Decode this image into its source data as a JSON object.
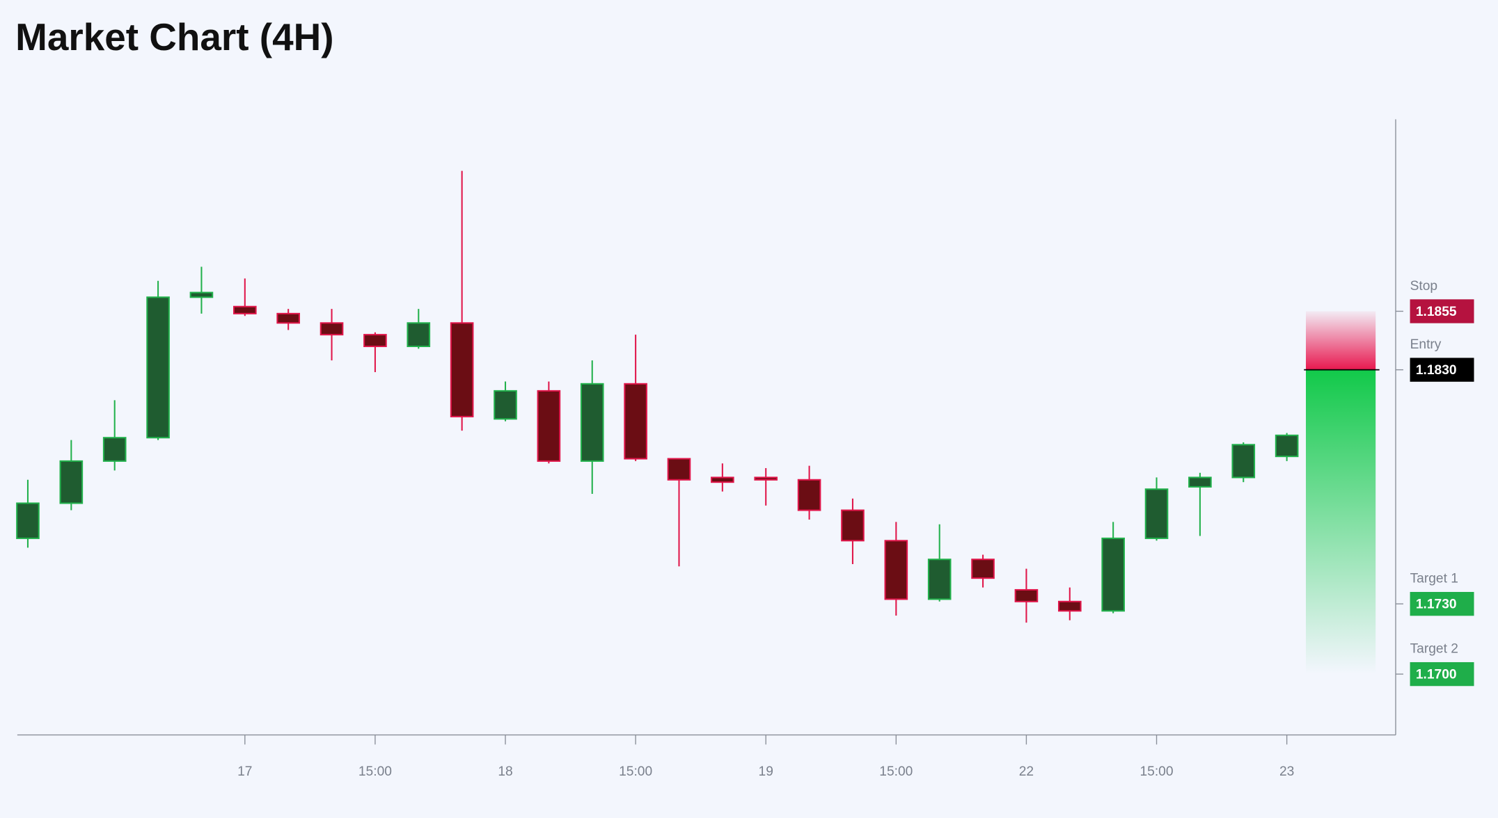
{
  "chart_data": {
    "type": "candlestick",
    "title": "Market Chart (4H)",
    "categories": [
      null,
      null,
      null,
      null,
      null,
      "17",
      null,
      null,
      "15:00",
      null,
      null,
      "18",
      null,
      null,
      "15:00",
      null,
      null,
      "19",
      null,
      null,
      "15:00",
      null,
      null,
      "22",
      null,
      null,
      "15:00",
      null,
      null,
      "23"
    ],
    "open": [
      1.1758,
      1.1773,
      1.1791,
      1.1801,
      1.1861,
      1.1857,
      1.1854,
      1.185,
      1.1845,
      1.184,
      1.185,
      1.1809,
      1.1821,
      1.1791,
      1.1824,
      1.1792,
      1.1784,
      1.1784,
      1.1783,
      1.177,
      1.1757,
      1.1732,
      1.1749,
      1.1736,
      1.1731,
      1.1727,
      1.1758,
      1.178,
      1.1784,
      1.1793
    ],
    "high": [
      1.1783,
      1.18,
      1.1817,
      1.1868,
      1.1874,
      1.1869,
      1.1856,
      1.1856,
      1.1846,
      1.1856,
      1.1915,
      1.1825,
      1.1825,
      1.1834,
      1.1845,
      1.1792,
      1.179,
      1.1788,
      1.1789,
      1.1775,
      1.1765,
      1.1764,
      1.1751,
      1.1745,
      1.1737,
      1.1765,
      1.1784,
      1.1786,
      1.1799,
      1.1803
    ],
    "low": [
      1.1754,
      1.177,
      1.1787,
      1.18,
      1.1854,
      1.1853,
      1.1847,
      1.1834,
      1.1829,
      1.1839,
      1.1804,
      1.1808,
      1.179,
      1.1777,
      1.1791,
      1.1746,
      1.1778,
      1.1772,
      1.1766,
      1.1747,
      1.1725,
      1.1731,
      1.1737,
      1.1722,
      1.1723,
      1.1726,
      1.1757,
      1.1759,
      1.1782,
      1.1791
    ],
    "close": [
      1.1773,
      1.1791,
      1.1801,
      1.1861,
      1.1863,
      1.1854,
      1.185,
      1.1845,
      1.184,
      1.185,
      1.181,
      1.1821,
      1.1791,
      1.1824,
      1.1792,
      1.1783,
      1.1782,
      1.1783,
      1.177,
      1.1757,
      1.1732,
      1.1749,
      1.1741,
      1.1731,
      1.1727,
      1.1758,
      1.1779,
      1.1784,
      1.1798,
      1.1802
    ],
    "up_color": "#22b14c",
    "up_fill": "#1f5c30",
    "down_color": "#e0164a",
    "down_fill": "#6b0d14",
    "ylim": [
      1.1674,
      1.1937
    ],
    "levels": [
      {
        "name": "Stop",
        "value": 1.1855,
        "label": "1.1855",
        "color": "#b5123f"
      },
      {
        "name": "Entry",
        "value": 1.183,
        "label": "1.1830",
        "color": "#000000"
      },
      {
        "name": "Target 1",
        "value": 1.173,
        "label": "1.1730",
        "color": "#1fae4a"
      },
      {
        "name": "Target 2",
        "value": 1.17,
        "label": "1.1700",
        "color": "#1fae4a"
      }
    ]
  }
}
